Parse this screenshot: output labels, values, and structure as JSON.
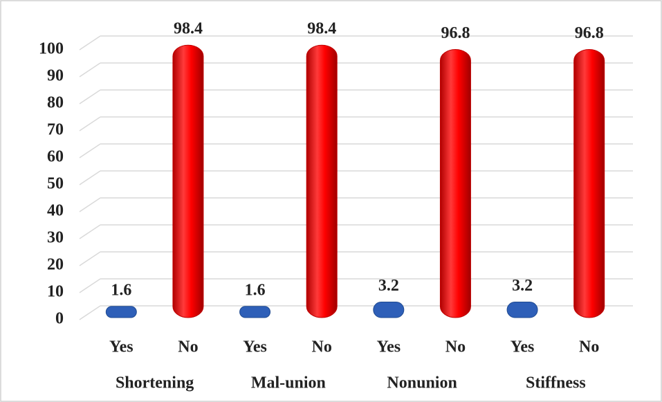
{
  "chart_data": {
    "type": "bar",
    "categories": [
      "Yes",
      "No",
      "Yes",
      "No",
      "Yes",
      "No",
      "Yes",
      "No"
    ],
    "groups": [
      "Shortening",
      "Mal-union",
      "Nonunion",
      "Stiffness"
    ],
    "values": [
      1.6,
      98.4,
      1.6,
      98.4,
      3.2,
      96.8,
      3.2,
      96.8
    ],
    "colors": [
      "#2e5fb8",
      "#ff0000",
      "#2e5fb8",
      "#ff0000",
      "#2e5fb8",
      "#ff0000",
      "#2e5fb8",
      "#ff0000"
    ],
    "ylim": [
      0,
      100
    ],
    "yticks": [
      0,
      10,
      20,
      30,
      40,
      50,
      60,
      70,
      80,
      90,
      100
    ],
    "grid": true
  }
}
